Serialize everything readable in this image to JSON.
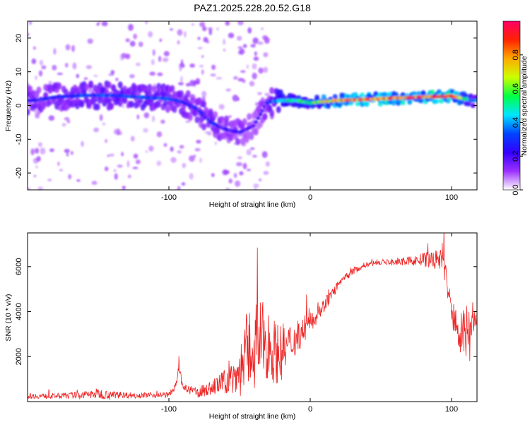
{
  "chart_data": [
    {
      "type": "heatmap",
      "title": "PAZ1.2025.228.20.52.G18",
      "xlabel": "Height of straight line (km)",
      "ylabel": "Frequency (Hz)",
      "xlim": [
        -200,
        118
      ],
      "ylim": [
        -25,
        25
      ],
      "xticks": [
        -100,
        0,
        100
      ],
      "yticks": [
        -20,
        -10,
        0,
        10,
        20
      ],
      "colorbar": {
        "label": "Normalized spectral amplitude",
        "range": [
          0,
          1
        ],
        "ticks": [
          "0.0",
          "0.2",
          "0.4",
          "0.6",
          "0.8"
        ],
        "colors": [
          "#ffffff",
          "#9b30ff",
          "#3300ff",
          "#0044ff",
          "#00e5ff",
          "#00ff44",
          "#ccff00",
          "#ffaa00",
          "#ff2200",
          "#ff0066"
        ]
      },
      "ridge": {
        "x": [
          -195,
          -180,
          -160,
          -140,
          -120,
          -100,
          -90,
          -80,
          -70,
          -60,
          -50,
          -40,
          -30,
          -20,
          -10,
          0,
          20,
          40,
          60,
          80,
          100,
          115
        ],
        "frequency": [
          1.5,
          2.5,
          3,
          3,
          2.5,
          2,
          1,
          -1,
          -5,
          -7,
          -8,
          -6,
          1,
          1.5,
          1.5,
          0.8,
          1.5,
          1.8,
          2.2,
          2.5,
          2.8,
          1.5
        ],
        "amplitude": [
          0.3,
          0.3,
          0.35,
          0.35,
          0.35,
          0.35,
          0.3,
          0.3,
          0.3,
          0.25,
          0.25,
          0.2,
          0.3,
          0.5,
          0.55,
          0.6,
          0.85,
          0.85,
          0.9,
          0.95,
          0.95,
          0.4
        ]
      }
    },
    {
      "type": "line",
      "title": "",
      "xlabel": "Height of straight line (km)",
      "ylabel": "SNR (10 * v/v)",
      "xlim": [
        -200,
        118
      ],
      "ylim": [
        0,
        7500
      ],
      "xticks": [
        -100,
        0,
        100
      ],
      "yticks": [
        2000,
        4000,
        6000
      ],
      "color": "#ee2222",
      "x": [
        -200,
        -180,
        -160,
        -150,
        -140,
        -120,
        -100,
        -95,
        -93,
        -90,
        -80,
        -70,
        -60,
        -50,
        -45,
        -40,
        -35,
        -30,
        -25,
        -20,
        -10,
        0,
        10,
        20,
        30,
        40,
        50,
        60,
        70,
        80,
        90,
        93,
        95,
        100,
        105,
        110,
        115,
        118
      ],
      "y": [
        250,
        250,
        300,
        350,
        300,
        280,
        300,
        700,
        1500,
        600,
        400,
        600,
        900,
        1300,
        2200,
        2500,
        2700,
        2600,
        2200,
        2200,
        2800,
        3500,
        4300,
        5200,
        5800,
        6100,
        6200,
        6200,
        6250,
        6300,
        6300,
        6500,
        6000,
        3800,
        3300,
        3000,
        3500,
        3550
      ],
      "noise": [
        150,
        150,
        200,
        300,
        200,
        150,
        150,
        200,
        300,
        200,
        300,
        400,
        700,
        1400,
        2200,
        2500,
        2300,
        2000,
        1800,
        1600,
        900,
        600,
        400,
        250,
        200,
        150,
        150,
        200,
        250,
        400,
        600,
        900,
        900,
        900,
        1200,
        1600,
        1200,
        400
      ]
    }
  ]
}
